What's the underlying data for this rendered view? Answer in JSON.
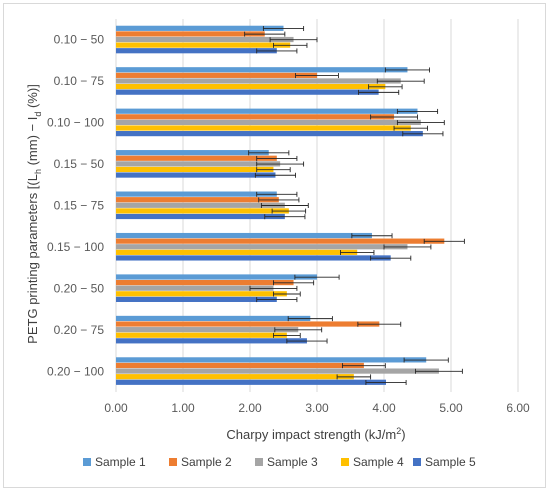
{
  "chart_data": {
    "type": "bar",
    "orientation": "horizontal",
    "categories": [
      "0.10 − 50",
      "0.10 − 75",
      "0.10 − 100",
      "0.15 − 50",
      "0.15 − 75",
      "0.15 − 100",
      "0.20 − 50",
      "0.20 − 75",
      "0.20 − 100"
    ],
    "ylabel_parts": [
      "PETG printing parameters [(L",
      "h",
      " (mm) − I",
      "d",
      " (%)]"
    ],
    "xlabel_parts": [
      "Charpy impact strength (kJ/m",
      "2",
      ")"
    ],
    "xlim": [
      0,
      6
    ],
    "x_ticks": [
      "0.00",
      "1.00",
      "2.00",
      "3.00",
      "4.00",
      "5.00",
      "6.00"
    ],
    "grid": "vertical",
    "legend_position": "bottom",
    "series": [
      {
        "name": "Sample 1",
        "color": "#5b9bd5",
        "values": [
          2.5,
          4.35,
          4.5,
          2.28,
          2.4,
          3.82,
          3.0,
          2.9,
          4.63
        ],
        "errors": [
          0.3,
          0.33,
          0.3,
          0.3,
          0.3,
          0.3,
          0.33,
          0.33,
          0.33
        ]
      },
      {
        "name": "Sample 2",
        "color": "#ed7d31",
        "values": [
          2.22,
          3.0,
          4.15,
          2.4,
          2.43,
          4.9,
          2.65,
          3.93,
          3.7
        ],
        "errors": [
          0.3,
          0.32,
          0.35,
          0.3,
          0.3,
          0.3,
          0.3,
          0.32,
          0.32
        ]
      },
      {
        "name": "Sample 3",
        "color": "#a5a5a5",
        "values": [
          2.65,
          4.25,
          4.55,
          2.45,
          2.52,
          4.35,
          2.35,
          2.72,
          4.82
        ],
        "errors": [
          0.35,
          0.35,
          0.35,
          0.35,
          0.35,
          0.35,
          0.35,
          0.35,
          0.35
        ]
      },
      {
        "name": "Sample 4",
        "color": "#ffc000",
        "values": [
          2.6,
          4.02,
          4.4,
          2.35,
          2.58,
          3.6,
          2.55,
          2.55,
          3.55
        ],
        "errors": [
          0.25,
          0.25,
          0.25,
          0.25,
          0.25,
          0.25,
          0.2,
          0.2,
          0.25
        ]
      },
      {
        "name": "Sample 5",
        "color": "#4472c4",
        "values": [
          2.4,
          3.92,
          4.58,
          2.38,
          2.52,
          4.1,
          2.4,
          2.85,
          4.03
        ],
        "errors": [
          0.3,
          0.3,
          0.3,
          0.3,
          0.3,
          0.3,
          0.3,
          0.3,
          0.3
        ]
      }
    ]
  }
}
